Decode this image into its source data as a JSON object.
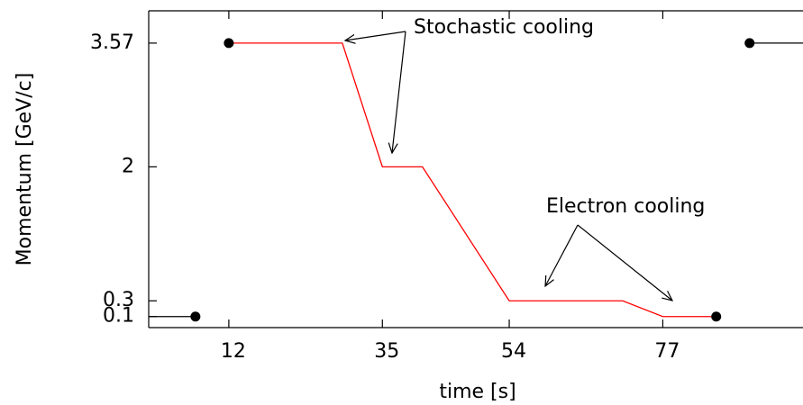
{
  "chart_data": {
    "type": "line",
    "xlabel": "time [s]",
    "ylabel": "Momentum [GeV/c]",
    "xlim": [
      0,
      98
    ],
    "ylim": [
      -0.04,
      3.98
    ],
    "xticks": [
      12,
      35,
      54,
      77
    ],
    "yticks": [
      0.1,
      0.3,
      2,
      3.57
    ],
    "series": [
      {
        "color": "#000000",
        "x": [
          0,
          7
        ],
        "values": [
          0.1,
          0.1
        ]
      },
      {
        "color": "#ff0000",
        "x": [
          12,
          29,
          35,
          41,
          54,
          71,
          77,
          85
        ],
        "values": [
          3.57,
          3.57,
          2,
          2,
          0.3,
          0.3,
          0.1,
          0.1
        ]
      },
      {
        "color": "#000000",
        "x": [
          90,
          98
        ],
        "values": [
          3.57,
          3.57
        ]
      }
    ],
    "points": {
      "color": "#000000",
      "x": [
        7,
        12,
        85,
        90
      ],
      "values": [
        0.1,
        3.57,
        0.1,
        3.57
      ]
    },
    "annotations": [
      "Stochastic cooling",
      "Electron cooling"
    ]
  }
}
